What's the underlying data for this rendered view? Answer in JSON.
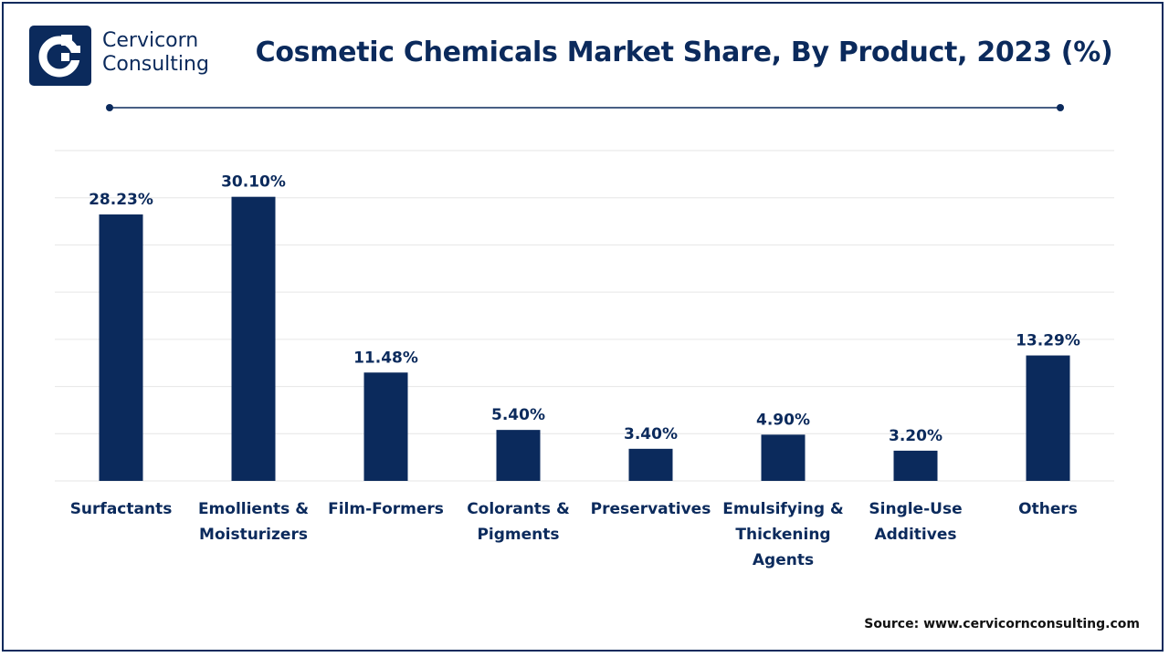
{
  "brand": {
    "line1": "Cervicorn",
    "line2": "Consulting",
    "logo_icon": "cervicorn-logo-icon"
  },
  "title": "Cosmetic Chemicals Market Share, By Product, 2023 (%)",
  "source": "Source: www.cervicornconsulting.com",
  "colors": {
    "bar": "#0b2a5c",
    "text": "#0b2a5c",
    "grid": "#e6e6e6",
    "border": "#0b2a5c"
  },
  "chart_data": {
    "type": "bar",
    "title": "Cosmetic Chemicals Market Share, By Product, 2023 (%)",
    "categories": [
      [
        "Surfactants"
      ],
      [
        "Emollients &",
        "Moisturizers"
      ],
      [
        "Film-Formers"
      ],
      [
        "Colorants &",
        "Pigments"
      ],
      [
        "Preservatives"
      ],
      [
        "Emulsifying &",
        "Thickening",
        "Agents"
      ],
      [
        "Single-Use",
        "Additives"
      ],
      [
        "Others"
      ]
    ],
    "values": [
      28.23,
      30.1,
      11.48,
      5.4,
      3.4,
      4.9,
      3.2,
      13.29
    ],
    "value_labels": [
      "28.23%",
      "30.10%",
      "11.48%",
      "5.40%",
      "3.40%",
      "4.90%",
      "3.20%",
      "13.29%"
    ],
    "ylim": [
      0,
      35
    ],
    "grid": true,
    "legend": "none"
  }
}
